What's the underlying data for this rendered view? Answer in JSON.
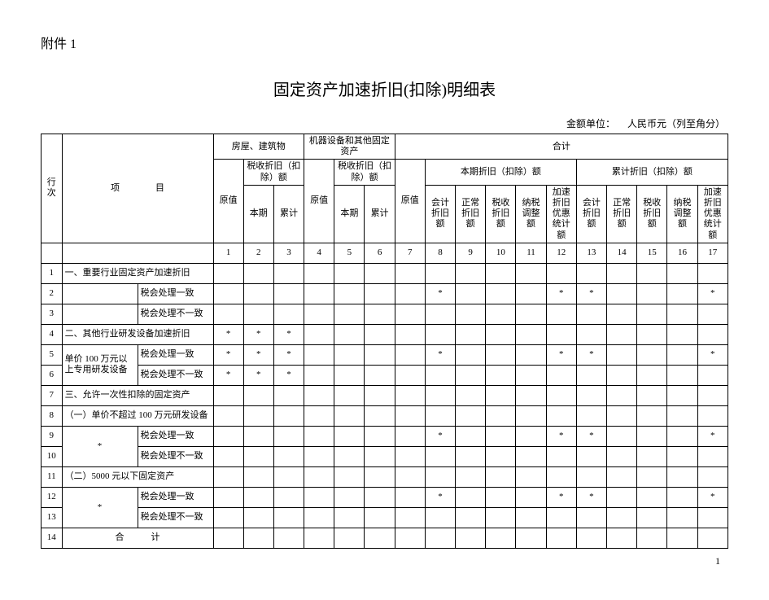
{
  "attachment_label": "附件 1",
  "title": "固定资产加速折旧(扣除)明细表",
  "unit_label": "金额单位：",
  "unit_value": "人民币元（列至角分）",
  "page_number": "1",
  "header": {
    "rownum": "行次",
    "item": "项　　　　目",
    "group_house": "房屋、建筑物",
    "group_machine": "机器设备和其他固定资产",
    "group_total": "合计",
    "orig_value": "原值",
    "tax_dep": "税收折旧（扣除）额",
    "current": "本期",
    "cumul": "累计",
    "current_dep": "本期折旧（扣除）额",
    "cumul_dep": "累计折旧（扣除）额",
    "acct_dep": "会计折旧额",
    "normal_dep": "正常折旧额",
    "tax_dep_short": "税收折旧额",
    "tax_adj": "纳税调整额",
    "accel_stat": "加速折旧优惠统计额"
  },
  "colnums": [
    "1",
    "2",
    "3",
    "4",
    "5",
    "6",
    "7",
    "8",
    "9",
    "10",
    "11",
    "12",
    "13",
    "14",
    "15",
    "16",
    "17"
  ],
  "rows": [
    {
      "n": "1",
      "a": "一、重要行业固定资产加速折旧",
      "aspan": 2,
      "cells": [
        "",
        "",
        "",
        "",
        "",
        "",
        "",
        "",
        "",
        "",
        "",
        "",
        "",
        "",
        "",
        "",
        ""
      ]
    },
    {
      "n": "2",
      "a": "",
      "b": "税会处理一致",
      "cells": [
        "",
        "",
        "",
        "",
        "",
        "",
        "",
        "*",
        "",
        "",
        "",
        "*",
        "*",
        "",
        "",
        "",
        "*"
      ]
    },
    {
      "n": "3",
      "a": "",
      "b": "税会处理不一致",
      "cells": [
        "",
        "",
        "",
        "",
        "",
        "",
        "",
        "",
        "",
        "",
        "",
        "",
        "",
        "",
        "",
        "",
        ""
      ]
    },
    {
      "n": "4",
      "a": "二、其他行业研发设备加速折旧",
      "aspan": 2,
      "cells": [
        "*",
        "*",
        "*",
        "",
        "",
        "",
        "",
        "",
        "",
        "",
        "",
        "",
        "",
        "",
        "",
        "",
        ""
      ]
    },
    {
      "n": "5",
      "a": "单价 100 万元以上专用研发设备",
      "arow": 2,
      "b": "税会处理一致",
      "cells": [
        "*",
        "*",
        "*",
        "",
        "",
        "",
        "",
        "*",
        "",
        "",
        "",
        "*",
        "*",
        "",
        "",
        "",
        "*"
      ]
    },
    {
      "n": "6",
      "b": "税会处理不一致",
      "cells": [
        "*",
        "*",
        "*",
        "",
        "",
        "",
        "",
        "",
        "",
        "",
        "",
        "",
        "",
        "",
        "",
        "",
        ""
      ]
    },
    {
      "n": "7",
      "a": "三、允许一次性扣除的固定资产",
      "aspan": 2,
      "cells": [
        "",
        "",
        "",
        "",
        "",
        "",
        "",
        "",
        "",
        "",
        "",
        "",
        "",
        "",
        "",
        "",
        ""
      ]
    },
    {
      "n": "8",
      "a": "（一）单价不超过 100 万元研发设备",
      "aspan": 2,
      "cells": [
        "",
        "",
        "",
        "",
        "",
        "",
        "",
        "",
        "",
        "",
        "",
        "",
        "",
        "",
        "",
        "",
        ""
      ]
    },
    {
      "n": "9",
      "a": "*",
      "arow": 2,
      "acenter": true,
      "b": "税会处理一致",
      "cells": [
        "",
        "",
        "",
        "",
        "",
        "",
        "",
        "*",
        "",
        "",
        "",
        "*",
        "*",
        "",
        "",
        "",
        "*"
      ]
    },
    {
      "n": "10",
      "b": "税会处理不一致",
      "cells": [
        "",
        "",
        "",
        "",
        "",
        "",
        "",
        "",
        "",
        "",
        "",
        "",
        "",
        "",
        "",
        "",
        ""
      ]
    },
    {
      "n": "11",
      "a": "（二）5000 元以下固定资产",
      "aspan": 2,
      "cells": [
        "",
        "",
        "",
        "",
        "",
        "",
        "",
        "",
        "",
        "",
        "",
        "",
        "",
        "",
        "",
        "",
        ""
      ]
    },
    {
      "n": "12",
      "a": "*",
      "arow": 2,
      "acenter": true,
      "b": "税会处理一致",
      "cells": [
        "",
        "",
        "",
        "",
        "",
        "",
        "",
        "*",
        "",
        "",
        "",
        "*",
        "*",
        "",
        "",
        "",
        "*"
      ]
    },
    {
      "n": "13",
      "b": "税会处理不一致",
      "cells": [
        "",
        "",
        "",
        "",
        "",
        "",
        "",
        "",
        "",
        "",
        "",
        "",
        "",
        "",
        "",
        "",
        ""
      ]
    },
    {
      "n": "14",
      "a": "合　　　计",
      "aspan": 2,
      "acenter": true,
      "cells": [
        "",
        "",
        "",
        "",
        "",
        "",
        "",
        "",
        "",
        "",
        "",
        "",
        "",
        "",
        "",
        "",
        ""
      ]
    }
  ]
}
